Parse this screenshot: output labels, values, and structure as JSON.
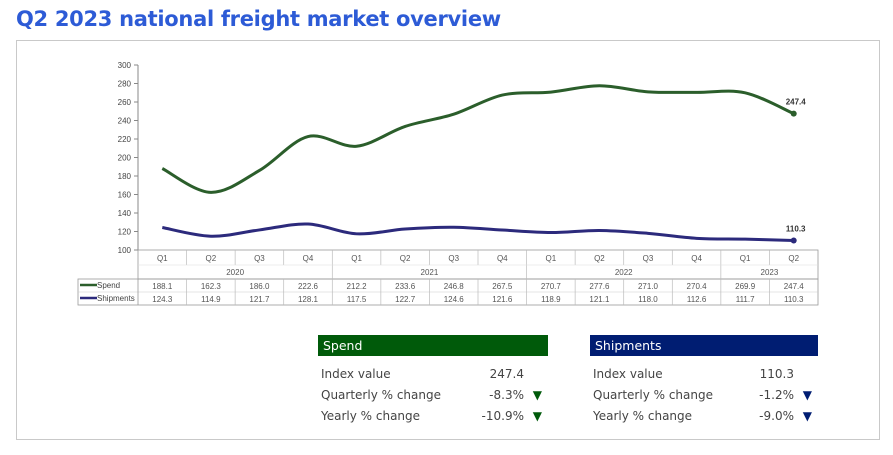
{
  "title": "Q2 2023 national freight market overview",
  "chart_data": {
    "type": "line",
    "ylim": [
      100,
      300
    ],
    "yticks": [
      100,
      120,
      140,
      160,
      180,
      200,
      220,
      240,
      260,
      280,
      300
    ],
    "categories": [
      "Q1",
      "Q2",
      "Q3",
      "Q4",
      "Q1",
      "Q2",
      "Q3",
      "Q4",
      "Q1",
      "Q2",
      "Q3",
      "Q4",
      "Q1",
      "Q2"
    ],
    "years": [
      {
        "label": "2020",
        "span": 4
      },
      {
        "label": "2021",
        "span": 4
      },
      {
        "label": "2022",
        "span": 4
      },
      {
        "label": "2023",
        "span": 2
      }
    ],
    "series": [
      {
        "name": "Spend",
        "color": "#2b5e2b",
        "values": [
          188.1,
          162.3,
          186.0,
          222.6,
          212.2,
          233.6,
          246.8,
          267.5,
          270.7,
          277.6,
          271.0,
          270.4,
          269.9,
          247.4
        ],
        "end_label": "247.4"
      },
      {
        "name": "Shipments",
        "color": "#2c2a7c",
        "values": [
          124.3,
          114.9,
          121.7,
          128.1,
          117.5,
          122.7,
          124.6,
          121.6,
          118.9,
          121.1,
          118.0,
          112.6,
          111.7,
          110.3
        ],
        "end_label": "110.3"
      }
    ],
    "grid": false,
    "legend": "data-table"
  },
  "panels": [
    {
      "title": "Spend",
      "color": "#005a0a",
      "rows": [
        {
          "label": "Index value",
          "value": "247.4",
          "arrow": ""
        },
        {
          "label": "Quarterly % change",
          "value": "-8.3%",
          "arrow": "▼"
        },
        {
          "label": "Yearly % change",
          "value": "-10.9%",
          "arrow": "▼"
        }
      ]
    },
    {
      "title": "Shipments",
      "color": "#001d72",
      "rows": [
        {
          "label": "Index value",
          "value": "110.3",
          "arrow": ""
        },
        {
          "label": "Quarterly % change",
          "value": "-1.2%",
          "arrow": "▼"
        },
        {
          "label": "Yearly % change",
          "value": "-9.0%",
          "arrow": "▼"
        }
      ]
    }
  ]
}
